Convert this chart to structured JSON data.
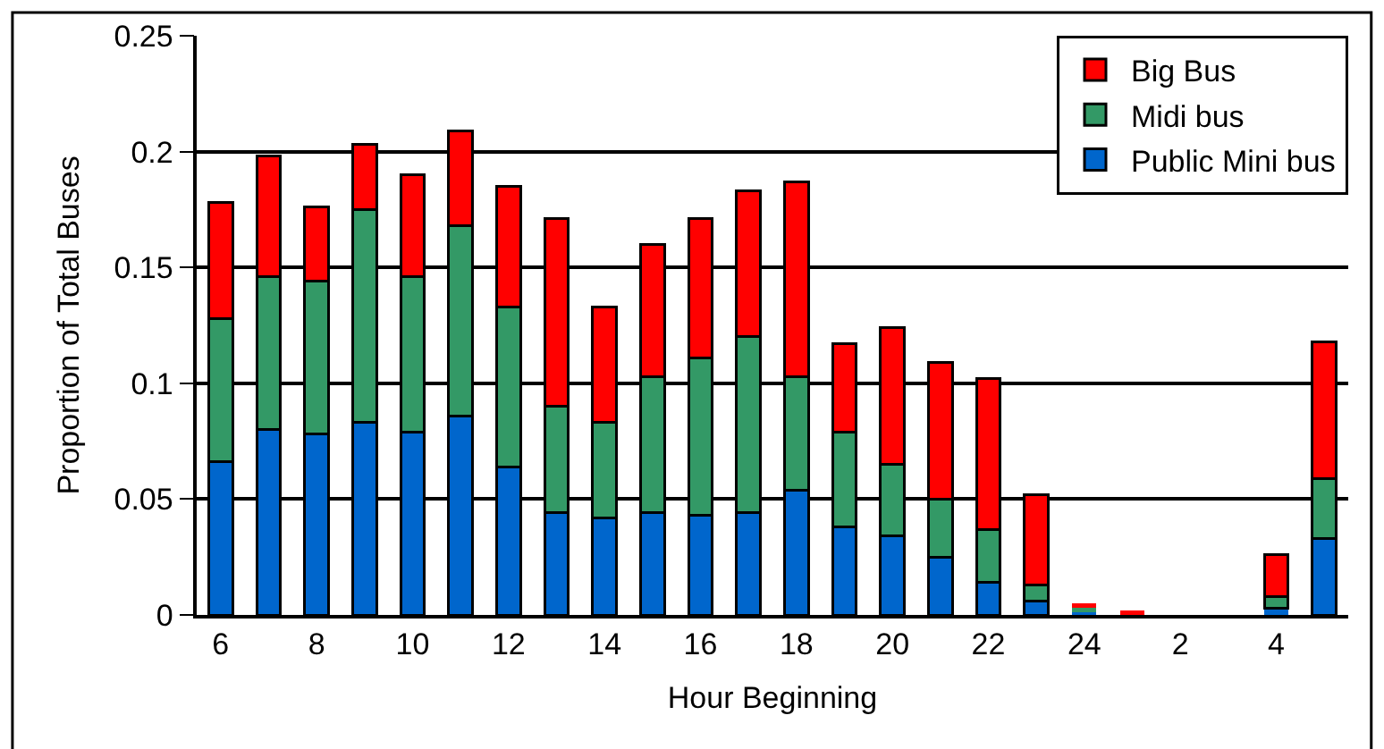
{
  "chart_data": {
    "type": "bar",
    "stacked": true,
    "xlabel": "Hour Beginning",
    "ylabel": "Proportion of Total Buses",
    "categories": [
      "6",
      null,
      "8",
      null,
      "10",
      null,
      "12",
      null,
      "14",
      null,
      "16",
      null,
      "18",
      null,
      "20",
      null,
      "22",
      null,
      "24",
      null,
      "2",
      null,
      "4",
      null
    ],
    "series": [
      {
        "name": "Public Mini bus",
        "color": "#0066cc",
        "values": [
          0.066,
          0.08,
          0.078,
          0.083,
          0.079,
          0.086,
          0.064,
          0.044,
          0.042,
          0.044,
          0.043,
          0.044,
          0.054,
          0.038,
          0.034,
          0.025,
          0.014,
          0.006,
          0.001,
          0,
          0,
          0,
          0.003,
          0.033
        ]
      },
      {
        "name": "Midi bus",
        "color": "#339966",
        "values": [
          0.062,
          0.066,
          0.066,
          0.092,
          0.067,
          0.082,
          0.069,
          0.046,
          0.041,
          0.059,
          0.068,
          0.076,
          0.049,
          0.041,
          0.031,
          0.025,
          0.023,
          0.007,
          0.002,
          0,
          0,
          0,
          0.005,
          0.026
        ]
      },
      {
        "name": "Big Bus",
        "color": "#ff0000",
        "values": [
          0.05,
          0.052,
          0.032,
          0.028,
          0.044,
          0.041,
          0.052,
          0.081,
          0.05,
          0.057,
          0.06,
          0.063,
          0.084,
          0.038,
          0.059,
          0.059,
          0.065,
          0.039,
          0.002,
          0.002,
          0,
          0,
          0.018,
          0.059
        ]
      }
    ],
    "ylim": [
      0,
      0.25
    ],
    "yticks": [
      0,
      0.05,
      0.1,
      0.15,
      0.2,
      0.25
    ],
    "grid": "y",
    "legend": "top right"
  }
}
